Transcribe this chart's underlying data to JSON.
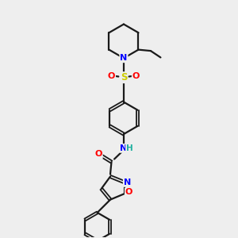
{
  "background_color": "#eeeeee",
  "bond_color": "#1a1a1a",
  "atom_colors": {
    "N": "#0000ff",
    "O": "#ff0000",
    "S": "#cccc00",
    "H": "#20b0a0",
    "C": "#1a1a1a"
  },
  "figsize": [
    3.0,
    3.0
  ],
  "dpi": 100,
  "xlim": [
    0,
    10
  ],
  "ylim": [
    0,
    10
  ]
}
